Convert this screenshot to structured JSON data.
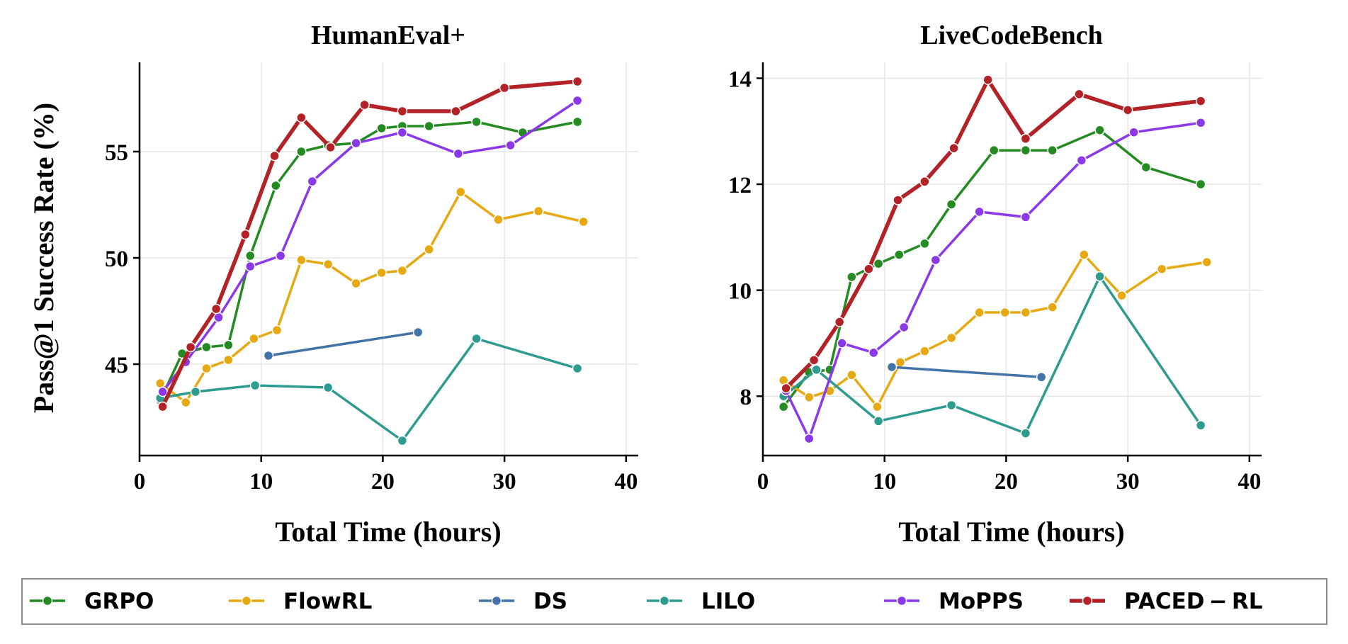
{
  "chart_data": [
    {
      "type": "line",
      "title": "HumanEval+",
      "xlabel": "Total Time (hours)",
      "ylabel": "Pass@1 Success Rate (%)",
      "xlim": [
        0,
        41
      ],
      "ylim": [
        40.7,
        59.2
      ],
      "xticks": [
        "0",
        "10",
        "20",
        "30",
        "40"
      ],
      "xtick_values": [
        0,
        10,
        20,
        30,
        40
      ],
      "yticks": [
        "45",
        "50",
        "55"
      ],
      "ytick_values": [
        45,
        50,
        55
      ],
      "grid": true,
      "series": [
        {
          "name": "GRPO",
          "x": [
            1.7,
            3.5,
            5.5,
            7.3,
            9.1,
            11.2,
            13.3,
            15.5,
            17.8,
            19.9,
            21.6,
            23.8,
            27.7,
            31.5,
            36.0
          ],
          "values": [
            43.3,
            45.5,
            45.8,
            45.9,
            50.1,
            53.4,
            55.0,
            55.3,
            55.4,
            56.1,
            56.2,
            56.2,
            56.4,
            55.9,
            56.4
          ]
        },
        {
          "name": "FlowRL",
          "x": [
            1.7,
            3.8,
            5.5,
            7.3,
            9.4,
            11.3,
            13.3,
            15.5,
            17.8,
            19.9,
            21.6,
            23.8,
            26.4,
            29.5,
            32.8,
            36.5
          ],
          "values": [
            44.1,
            43.2,
            44.8,
            45.2,
            46.2,
            46.6,
            49.9,
            49.7,
            48.8,
            49.3,
            49.4,
            50.4,
            53.1,
            51.8,
            52.2,
            51.7
          ]
        },
        {
          "name": "DS",
          "x": [
            10.6,
            22.9
          ],
          "values": [
            45.4,
            46.5
          ]
        },
        {
          "name": "LILO",
          "x": [
            1.7,
            4.6,
            9.5,
            15.5,
            21.6,
            27.7,
            36.0
          ],
          "values": [
            43.4,
            43.7,
            44.0,
            43.9,
            41.4,
            46.2,
            44.8
          ]
        },
        {
          "name": "MoPPS",
          "x": [
            1.9,
            3.8,
            6.5,
            9.1,
            11.6,
            14.2,
            17.8,
            21.6,
            26.2,
            30.5,
            36.0
          ],
          "values": [
            43.7,
            45.1,
            47.2,
            49.6,
            50.1,
            53.6,
            55.4,
            55.9,
            54.9,
            55.3,
            57.4
          ]
        },
        {
          "name": "PACED − RL",
          "x": [
            1.9,
            4.2,
            6.3,
            8.7,
            11.1,
            13.3,
            15.7,
            18.5,
            21.6,
            26.0,
            30.0,
            36.0
          ],
          "values": [
            43.0,
            45.8,
            47.6,
            51.1,
            54.8,
            56.6,
            55.2,
            57.2,
            56.9,
            56.9,
            58.0,
            58.3
          ]
        }
      ]
    },
    {
      "type": "line",
      "title": "LiveCodeBench",
      "xlabel": "Total Time (hours)",
      "ylabel": "",
      "xlim": [
        0,
        41
      ],
      "ylim": [
        6.88,
        14.3
      ],
      "xticks": [
        "0",
        "10",
        "20",
        "30",
        "40"
      ],
      "xtick_values": [
        0,
        10,
        20,
        30,
        40
      ],
      "yticks": [
        "8",
        "10",
        "12",
        "14"
      ],
      "ytick_values": [
        8,
        10,
        12,
        14
      ],
      "grid": true,
      "series": [
        {
          "name": "GRPO",
          "x": [
            1.7,
            3.8,
            5.5,
            7.3,
            9.5,
            11.2,
            13.3,
            15.5,
            19.0,
            21.6,
            23.8,
            27.7,
            31.5,
            36.0
          ],
          "values": [
            7.8,
            8.45,
            8.5,
            10.25,
            10.5,
            10.67,
            10.88,
            11.62,
            12.64,
            12.64,
            12.64,
            13.02,
            12.32,
            12.0
          ]
        },
        {
          "name": "FlowRL",
          "x": [
            1.7,
            3.8,
            5.5,
            7.3,
            9.4,
            11.3,
            13.3,
            15.5,
            17.8,
            19.9,
            21.6,
            23.8,
            26.4,
            29.5,
            32.8,
            36.5
          ],
          "values": [
            8.3,
            7.98,
            8.1,
            8.4,
            7.8,
            8.64,
            8.85,
            9.1,
            9.58,
            9.58,
            9.58,
            9.68,
            10.67,
            9.9,
            10.4,
            10.53
          ]
        },
        {
          "name": "DS",
          "x": [
            10.6,
            22.9
          ],
          "values": [
            8.55,
            8.36
          ]
        },
        {
          "name": "LILO",
          "x": [
            1.7,
            4.4,
            9.5,
            15.5,
            21.6,
            27.7,
            36.0
          ],
          "values": [
            8.0,
            8.5,
            7.53,
            7.83,
            7.3,
            10.26,
            7.45
          ]
        },
        {
          "name": "MoPPS",
          "x": [
            1.9,
            3.8,
            6.5,
            9.1,
            11.6,
            14.2,
            17.8,
            21.6,
            26.2,
            30.5,
            36.0
          ],
          "values": [
            8.1,
            7.2,
            9.0,
            8.82,
            9.3,
            10.57,
            11.48,
            11.38,
            12.45,
            12.98,
            13.16
          ]
        },
        {
          "name": "PACED − RL",
          "x": [
            1.9,
            4.2,
            6.3,
            8.7,
            11.1,
            13.3,
            15.7,
            18.5,
            21.6,
            26.0,
            30.0,
            36.0
          ],
          "values": [
            8.15,
            8.68,
            9.4,
            10.4,
            11.7,
            12.05,
            12.68,
            13.97,
            12.86,
            13.7,
            13.4,
            13.57
          ]
        }
      ]
    }
  ],
  "legend": {
    "placement": "bottom",
    "entries": [
      {
        "name": "GRPO",
        "color": "#238b22"
      },
      {
        "name": "FlowRL",
        "color": "#e6a912"
      },
      {
        "name": "DS",
        "color": "#4474a7"
      },
      {
        "name": "LILO",
        "color": "#2e9b8f"
      },
      {
        "name": "MoPPS",
        "color": "#8a38e8"
      },
      {
        "name": "PACED − RL",
        "color": "#b22226"
      }
    ]
  }
}
